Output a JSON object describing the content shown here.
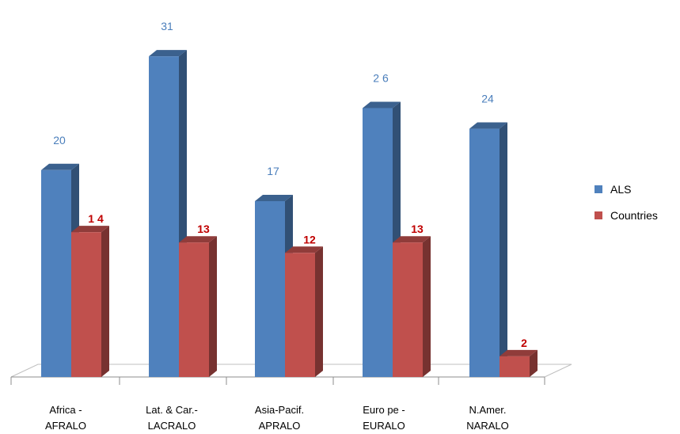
{
  "chart_data": {
    "type": "bar",
    "categories": [
      [
        "Africa -",
        "AFRALO"
      ],
      [
        "Lat. & Car.-",
        "LACRALO"
      ],
      [
        "Asia-Pacif.",
        "APRALO"
      ],
      [
        "Euro pe -",
        "EURALO"
      ],
      [
        "N.Amer.",
        "NARALO"
      ]
    ],
    "series": [
      {
        "name": "ALS",
        "values": [
          20,
          31,
          17,
          26,
          24
        ],
        "labels": [
          "20",
          "31",
          "17",
          "2 6",
          "24"
        ],
        "color": "#4f81bd"
      },
      {
        "name": "Countries",
        "values": [
          14,
          13,
          12,
          13,
          2
        ],
        "labels": [
          "1 4",
          "13",
          "12",
          "13",
          "2"
        ],
        "color": "#c0504d"
      }
    ],
    "title": "",
    "xlabel": "",
    "ylabel": "",
    "ylim": [
      0,
      33
    ],
    "grid": false,
    "legend": "right"
  }
}
